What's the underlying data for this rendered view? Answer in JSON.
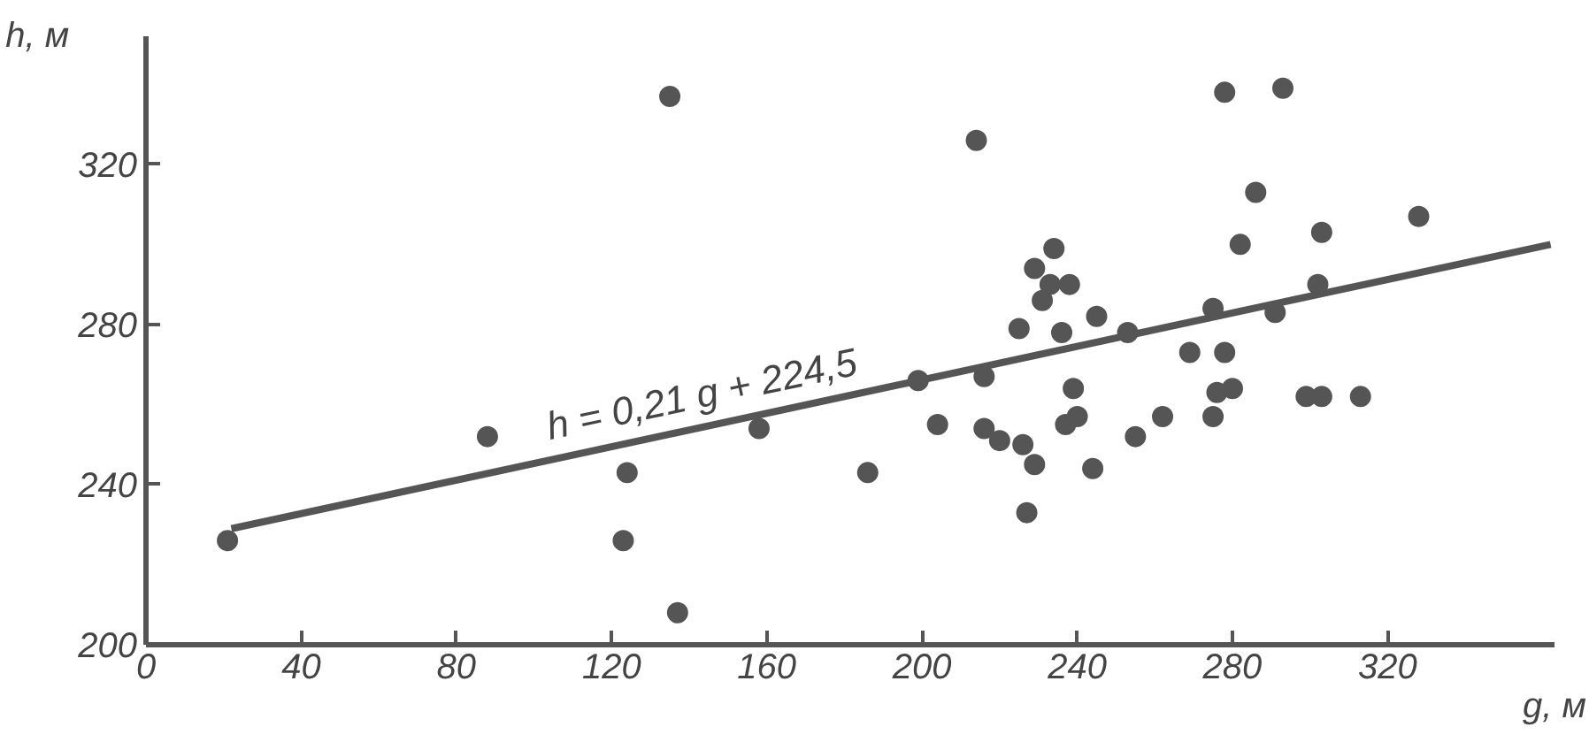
{
  "chart_data": {
    "type": "scatter",
    "xlabel": "g, м",
    "ylabel": "h, м",
    "xlim": [
      0,
      363
    ],
    "ylim": [
      200,
      352
    ],
    "xticks": [
      0,
      40,
      80,
      120,
      160,
      200,
      240,
      280,
      320
    ],
    "yticks": [
      200,
      240,
      280,
      320
    ],
    "grid": false,
    "annotations": [
      "h = 0,21 g + 224,5"
    ],
    "series": [
      {
        "marker": "circle",
        "color": "#555555",
        "x": [
          21,
          88,
          124,
          123,
          137,
          135,
          158,
          214,
          186,
          199,
          204,
          216,
          216,
          220,
          225,
          226,
          229,
          227,
          229,
          231,
          233,
          234,
          238,
          236,
          239,
          237,
          240,
          245,
          244,
          253,
          255,
          262,
          269,
          275,
          278,
          276,
          280,
          275,
          278,
          282,
          286,
          291,
          293,
          303,
          302,
          299,
          303,
          313,
          328
        ],
        "values": [
          226,
          252,
          243,
          226,
          208,
          337,
          254,
          326,
          243,
          266,
          255,
          267,
          254,
          251,
          279,
          250,
          245,
          233,
          294,
          286,
          290,
          299,
          290,
          278,
          264,
          255,
          257,
          282,
          244,
          278,
          252,
          257,
          273,
          284,
          273,
          263,
          264,
          257,
          338,
          300,
          313,
          283,
          339,
          303,
          290,
          262,
          262,
          262,
          307
        ]
      },
      {
        "type": "line",
        "marker": "none",
        "color": "#555555",
        "x": [
          22,
          362
        ],
        "values": [
          229,
          300
        ]
      }
    ]
  }
}
